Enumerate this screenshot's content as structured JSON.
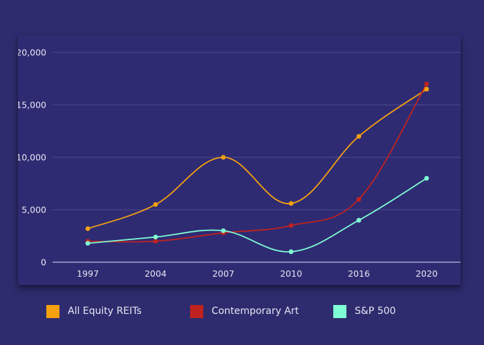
{
  "chart_data": {
    "type": "line",
    "categories": [
      "1997",
      "2004",
      "2007",
      "2010",
      "2016",
      "2020"
    ],
    "series": [
      {
        "name": "All Equity REITs",
        "color": "#f5a00f",
        "values": [
          3200,
          5500,
          10000,
          5600,
          12000,
          16500
        ]
      },
      {
        "name": "Contemporary Art",
        "color": "#c0221f",
        "values": [
          2000,
          2000,
          2800,
          3500,
          6000,
          17000
        ]
      },
      {
        "name": "S&P 500",
        "color": "#7fffd4",
        "values": [
          1800,
          2400,
          3000,
          1000,
          4000,
          8000
        ]
      }
    ],
    "yticks": [
      0,
      5000,
      10000,
      15000,
      20000
    ],
    "ytick_labels": [
      "0",
      "5,000",
      "10,000",
      "15,000",
      "20,000"
    ],
    "ylim": [
      0,
      20000
    ],
    "grid": true,
    "legend_position": "bottom"
  },
  "colors": {
    "background": "#2e2c6e",
    "plot_background": "#2f2b73",
    "grid": "#4e4b8f",
    "axis_line": "#a6a6d0",
    "text": "#e6e6f2"
  }
}
